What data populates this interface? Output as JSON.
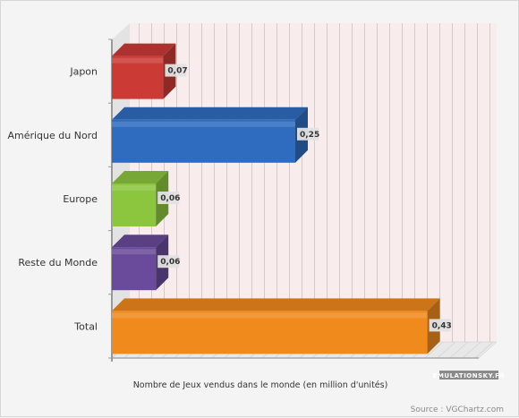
{
  "chart_data": {
    "type": "bar",
    "orientation": "horizontal",
    "style": "3d",
    "categories": [
      "Japon",
      "Amérique du Nord",
      "Europe",
      "Reste du Monde",
      "Total"
    ],
    "values": [
      0.07,
      0.25,
      0.06,
      0.06,
      0.43
    ],
    "value_labels": [
      "0,07",
      "0,25",
      "0,06",
      "0,06",
      "0,43"
    ],
    "colors": [
      "#cc3a36",
      "#2f6cc0",
      "#8cc63f",
      "#6a4a9a",
      "#f08a1c"
    ],
    "xlabel": "Nombre de Jeux vendus dans le monde (en million d'unités)",
    "xlim": [
      0,
      0.5
    ],
    "grid": true,
    "legend": "none"
  },
  "footer": {
    "source": "Source : VGChartz.com",
    "logo": {
      "text": "EMULATIONSKY.FR",
      "color": "#8a8a8a"
    }
  }
}
